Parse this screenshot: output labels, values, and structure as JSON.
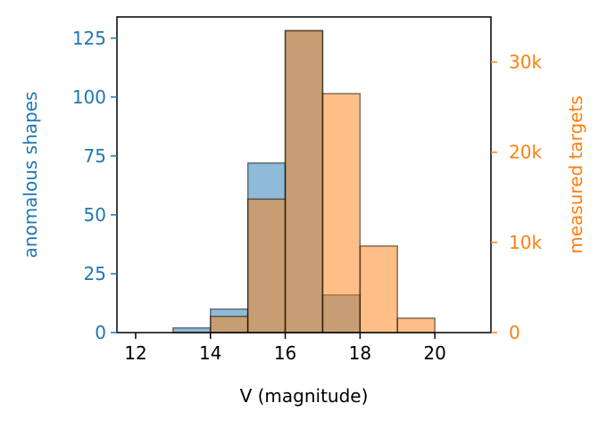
{
  "chart_data": {
    "type": "bar",
    "xlabel": "V (magnitude)",
    "xlim": [
      11.5,
      21.5
    ],
    "x_ticks": [
      12,
      14,
      16,
      18,
      20
    ],
    "x_tick_labels": [
      "12",
      "14",
      "16",
      "18",
      "20"
    ],
    "bin_edges": [
      12,
      13,
      14,
      15,
      16,
      17,
      18,
      19,
      20,
      21
    ],
    "grid": false,
    "axes": {
      "left": {
        "label": "anomalous shapes",
        "color": "#1f77b4",
        "ylim": [
          0,
          134
        ],
        "ticks": [
          0,
          25,
          50,
          75,
          100,
          125
        ],
        "tick_labels": [
          "0",
          "25",
          "50",
          "75",
          "100",
          "125"
        ]
      },
      "right": {
        "label": "measured targets",
        "color": "#ff7f0e",
        "ylim": [
          0,
          35000
        ],
        "ticks": [
          0,
          10000,
          20000,
          30000
        ],
        "tick_labels": [
          "0",
          "10k",
          "20k",
          "30k"
        ]
      }
    },
    "series": [
      {
        "axis": "left",
        "color": "#1f77b4",
        "alpha": 0.5,
        "values": [
          0,
          2,
          10,
          72,
          128,
          16,
          0,
          0,
          0
        ]
      },
      {
        "axis": "right",
        "color": "#ff7f0e",
        "alpha": 0.5,
        "values": [
          0,
          0,
          1800,
          14800,
          33500,
          26500,
          9600,
          1600,
          0
        ]
      }
    ]
  }
}
